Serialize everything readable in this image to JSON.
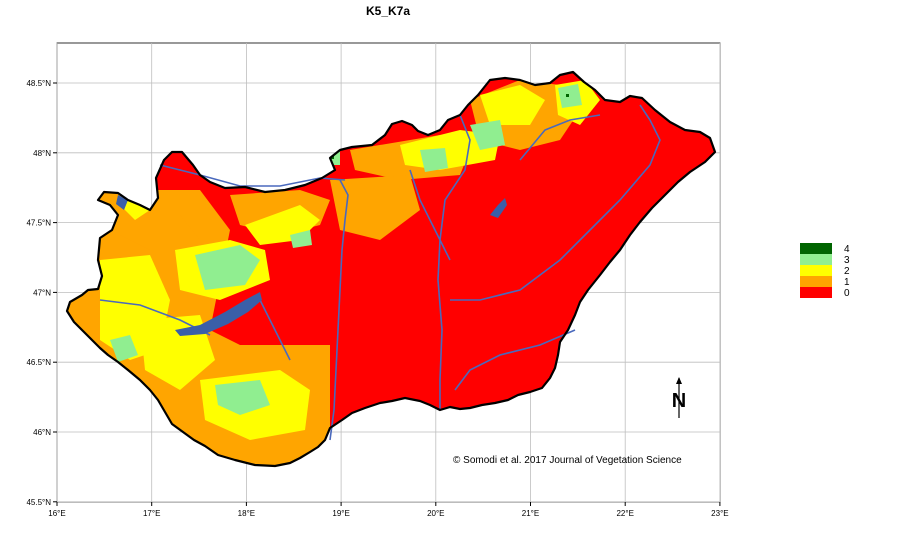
{
  "title": "K5_K7a",
  "credit": "© Somodi et al. 2017 Journal of Vegetation Science",
  "north_label": "N",
  "x_ticks": [
    "16°E",
    "17°E",
    "18°E",
    "19°E",
    "20°E",
    "21°E",
    "22°E",
    "23°E"
  ],
  "y_ticks": [
    "48.5°N",
    "48°N",
    "47.5°N",
    "47°N",
    "46.5°N",
    "46°N",
    "45.5°N"
  ],
  "legend": {
    "items": [
      {
        "label": "4",
        "color": "#006400"
      },
      {
        "label": "3",
        "color": "#90ee90"
      },
      {
        "label": "2",
        "color": "#ffff00"
      },
      {
        "label": "1",
        "color": "#ffa500"
      },
      {
        "label": "0",
        "color": "#ff0000"
      }
    ]
  },
  "colors": {
    "background": "#ffffff",
    "grid": "#bebebe",
    "border": "#000000",
    "rivers": "#4a69bd",
    "lakes": "#3a5fa8"
  }
}
